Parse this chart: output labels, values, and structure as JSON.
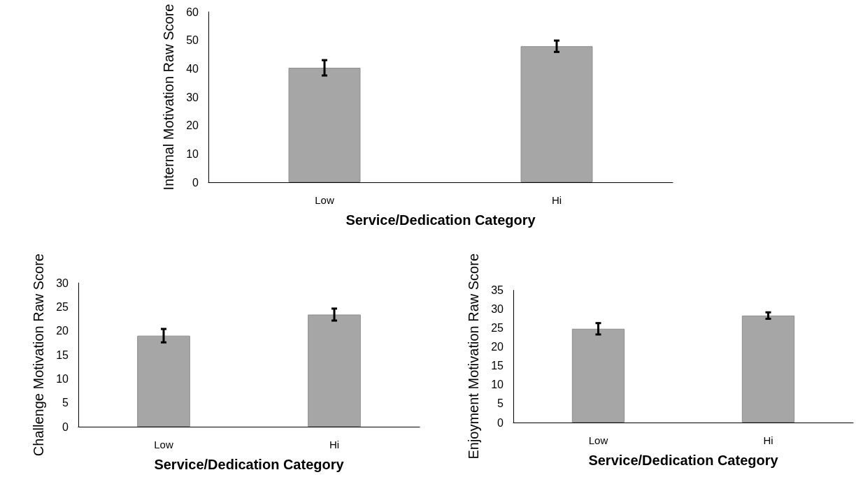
{
  "chart_data": [
    {
      "type": "bar",
      "xlabel": "Service/Dedication Category",
      "ylabel": "Internal Motivation Raw Score",
      "categories": [
        "Low",
        "Hi"
      ],
      "values": [
        40.3,
        47.9
      ],
      "errors": [
        2.7,
        2.0
      ],
      "color": "#a6a6a6",
      "ylim": [
        0,
        60
      ],
      "yticks": [
        0,
        10,
        20,
        30,
        40,
        50,
        60
      ]
    },
    {
      "type": "bar",
      "xlabel": "Service/Dedication Category",
      "ylabel": "Challenge Motivation Raw Score",
      "categories": [
        "Low",
        "Hi"
      ],
      "values": [
        19.0,
        23.4
      ],
      "errors": [
        1.4,
        1.25
      ],
      "color": "#a6a6a6",
      "ylim": [
        0,
        30
      ],
      "yticks": [
        0,
        5,
        10,
        15,
        20,
        25,
        30
      ]
    },
    {
      "type": "bar",
      "xlabel": "Service/Dedication Category",
      "ylabel": "Enjoyment Motivation Raw Score",
      "categories": [
        "Low",
        "Hi"
      ],
      "values": [
        24.8,
        28.3
      ],
      "errors": [
        1.5,
        0.85
      ],
      "color": "#a6a6a6",
      "ylim": [
        0,
        35
      ],
      "yticks": [
        0,
        5,
        10,
        15,
        20,
        25,
        30,
        35
      ]
    }
  ]
}
